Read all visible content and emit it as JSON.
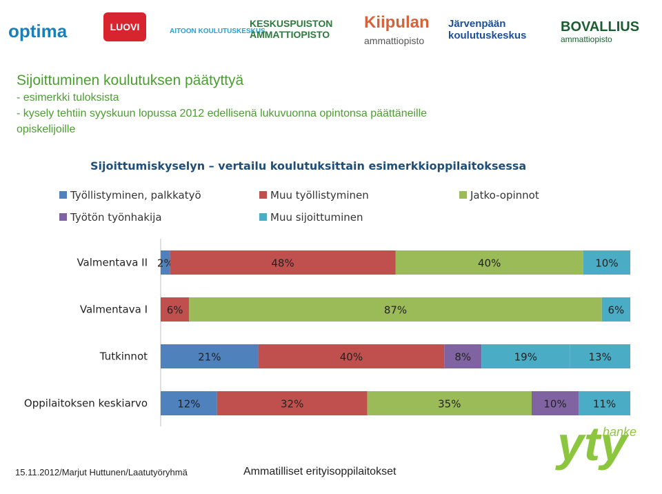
{
  "logos": {
    "optima": "optima",
    "luovi": "LUOVI",
    "aitoon": "AITOON KOULUTUSKESKUS",
    "keskuspuisto_1": "KESKUSPUISTON",
    "keskuspuisto_2": "AMMATTIOPISTO",
    "kiipula_1": "Kiipulan",
    "kiipula_2": "ammattiopisto",
    "jarvenpaa_1": "Järvenpään",
    "jarvenpaa_2": "koulutuskeskus",
    "bovallius_1": "BOVALLIUS",
    "bovallius_2": "ammattiopisto"
  },
  "header": {
    "title": "Sijoittuminen koulutuksen päätyttyä",
    "line1": "- esimerkki tuloksista",
    "line2": "- kysely tehtiin syyskuun lopussa 2012 edellisenä lukuvuonna opintonsa päättäneille",
    "line3": "opiskelijoille"
  },
  "chart_data": {
    "type": "bar",
    "orientation": "horizontal",
    "stacked": "percent",
    "title": "Sijoittumiskyselyn – vertailu koulutuksittain esimerkkioppilaitoksessa",
    "categories": [
      "Valmentava II",
      "Valmentava I",
      "Tutkinnot",
      "Oppilaitoksen keskiarvo"
    ],
    "series": [
      {
        "name": "Työllistyminen, palkkatyö",
        "color": "#4f81bd",
        "values": [
          2,
          0,
          21,
          12
        ],
        "labels": [
          "2%",
          "",
          "21%",
          "12%"
        ]
      },
      {
        "name": "Muu työllistyminen",
        "color": "#c0504d",
        "values": [
          48,
          6,
          40,
          32
        ],
        "labels": [
          "48%",
          "6%",
          "40%",
          "32%"
        ]
      },
      {
        "name": "Jatko-opinnot",
        "color": "#9bbb59",
        "values": [
          40,
          87,
          0,
          35
        ],
        "labels": [
          "40%",
          "87%",
          "",
          "35%"
        ]
      },
      {
        "name": "Työtön työnhakija",
        "color": "#8064a2",
        "values": [
          0,
          0,
          8,
          10
        ],
        "labels": [
          "",
          "",
          "8%",
          "10%"
        ]
      },
      {
        "name": "Muu sijoittuminen",
        "color": "#4bacc6",
        "values": [
          10,
          6,
          19,
          11
        ],
        "labels": [
          "10%",
          "6%",
          "19%",
          "11%"
        ]
      }
    ],
    "extra_segments": [
      {
        "category": "Tutkinnot",
        "series_color": "#4bacc6",
        "value": 13,
        "label": "13%"
      }
    ],
    "xlim": [
      0,
      100
    ],
    "grid": false,
    "legend_position": "top"
  },
  "footer": {
    "left": "15.11.2012/Marjut Huttunen/Laatutyöryhmä",
    "middle": "Ammatilliset erityisoppilaitokset",
    "brand": "yty",
    "brand_small": "hanke"
  }
}
